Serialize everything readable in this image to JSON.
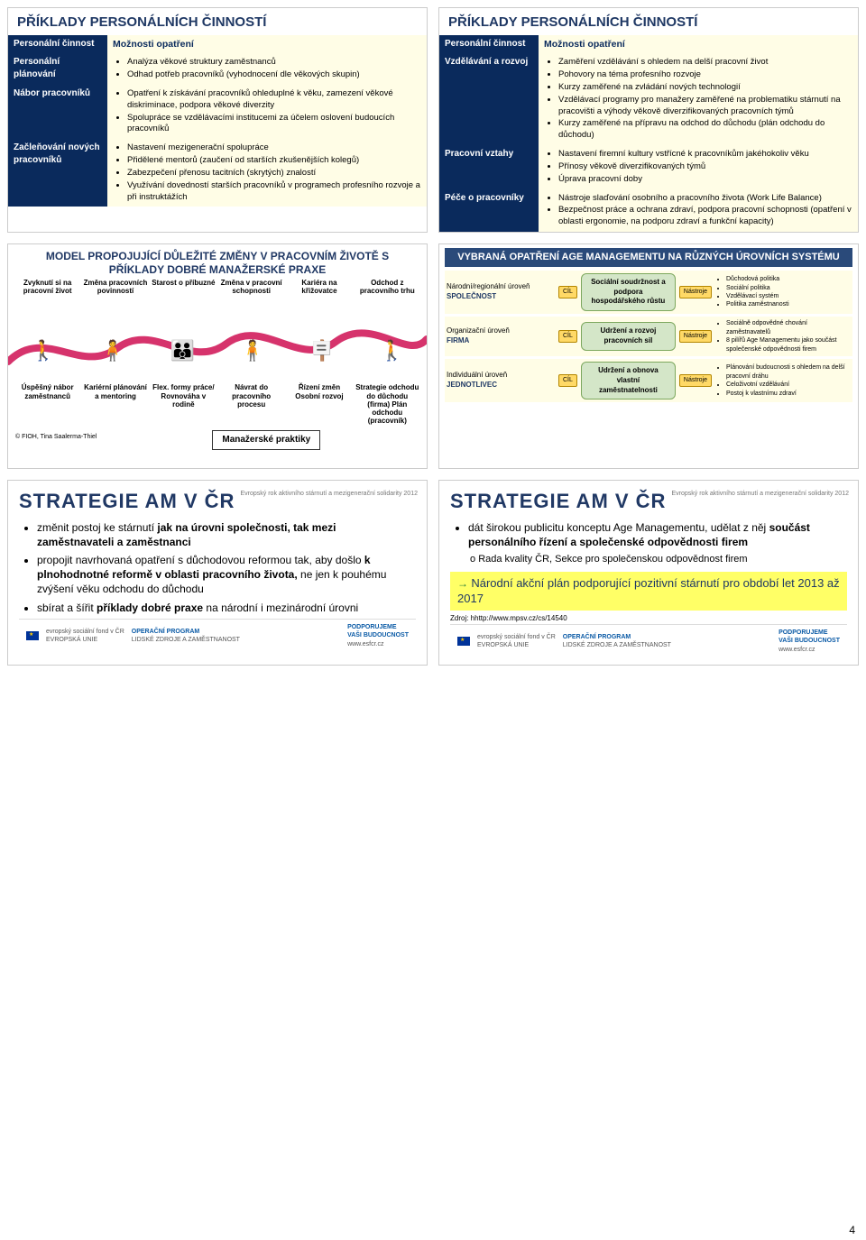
{
  "page_number": "4",
  "panels": {
    "p1": {
      "title": "PŘÍKLADY PERSONÁLNÍCH ČINNOSTÍ",
      "col_label": "Personální činnost",
      "col_opts": "Možnosti opatření",
      "rows": [
        {
          "label": "Personální plánování",
          "items": [
            "Analýza věkové struktury zaměstnanců",
            "Odhad potřeb pracovníků (vyhodnocení dle věkových skupin)"
          ]
        },
        {
          "label": "Nábor pracovníků",
          "items": [
            "Opatření k získávání pracovníků ohleduplné k věku, zamezení věkové diskriminace, podpora věkové diverzity",
            "Spolupráce se vzdělávacími institucemi za účelem oslovení budoucích pracovníků"
          ]
        },
        {
          "label": "Začleňování nových pracovníků",
          "items": [
            "Nastavení mezigenerační spolupráce",
            "Přidělené mentorů (zaučení od starších zkušenějších kolegů)",
            "Zabezpečení přenosu tacitních (skrytých) znalostí",
            "Využívání dovedností starších pracovníků v programech profesního rozvoje a při instruktážích"
          ]
        }
      ]
    },
    "p2": {
      "title": "PŘÍKLADY PERSONÁLNÍCH ČINNOSTÍ",
      "col_label": "Personální činnost",
      "col_opts": "Možnosti opatření",
      "rows": [
        {
          "label": "Vzdělávání a rozvoj",
          "items": [
            "Zaměření vzdělávání s ohledem na delší pracovní život",
            "Pohovory na téma profesního rozvoje",
            "Kurzy zaměřené na zvládání nových technologií",
            "Vzdělávací programy pro manažery zaměřené na problematiku stárnutí na pracovišti a výhody věkově diverzifikovaných pracovních týmů",
            "Kurzy zaměřené na přípravu na odchod do důchodu (plán odchodu do důchodu)"
          ]
        },
        {
          "label": "Pracovní vztahy",
          "items": [
            "Nastavení firemní kultury vstřícné k pracovníkům jakéhokoliv věku",
            "Přínosy věkově diverzifikovaných týmů",
            "Úprava pracovní doby"
          ]
        },
        {
          "label": "Péče o pracovníky",
          "items": [
            "Nástroje slaďování osobního a pracovního života (Work Life Balance)",
            "Bezpečnost práce a ochrana zdraví, podpora pracovní schopnosti (opatření v oblasti ergonomie, na podporu zdraví a funkční kapacity)"
          ]
        }
      ]
    },
    "p3": {
      "title": "MODEL PROPOJUJÍCÍ DŮLEŽITÉ ZMĚNY V PRACOVNÍM ŽIVOTĚ S PŘÍKLADY DOBRÉ MANAŽERSKÉ PRAXE",
      "top": [
        "Zvyknutí si na pracovní život",
        "Změna pracovních povinností",
        "Starost o příbuzné",
        "Změna v pracovní schopnosti",
        "Kariéra na křižovatce",
        "Odchod z pracovního trhu"
      ],
      "bot": [
        "Úspěšný nábor zaměstnanců",
        "Kariérní plánování a mentoring",
        "Flex. formy práce/ Rovnováha v rodině",
        "Návrat do pracovního procesu",
        "Řízení změn Osobní rozvoj",
        "Strategie odchodu do důchodu (firma) Plán odchodu (pracovník)"
      ],
      "mgr": "Manažerské praktiky",
      "credit": "© FIOH, Tina Saalerma-Thiel",
      "wave_color": "#d6336c"
    },
    "p4": {
      "title": "VYBRANÁ OPATŘENÍ AGE MANAGEMENTU NA RŮZNÝCH ÚROVNÍCH SYSTÉMU",
      "cil": "CÍL",
      "nas": "Nástroje",
      "rows": [
        {
          "left_top": "Národní/regionální úroveň",
          "left_main": "SPOLEČNOST",
          "mid": "Sociální soudržnost a podpora hospodářského růstu",
          "right": [
            "Důchodová politika",
            "Sociální politika",
            "Vzdělávací systém",
            "Politika zaměstnanosti"
          ]
        },
        {
          "left_top": "Organizační úroveň",
          "left_main": "FIRMA",
          "mid": "Udržení a rozvoj pracovních sil",
          "right": [
            "Sociálně odpovědné chování zaměstnavatelů",
            "8 pilířů Age Managementu jako součást společenské odpovědnosti firem"
          ]
        },
        {
          "left_top": "Individuální úroveň",
          "left_main": "JEDNOTLIVEC",
          "mid": "Udržení a obnova vlastní zaměstnatelnosti",
          "right": [
            "Plánování budoucnosti s ohledem na delší pracovní dráhu",
            "Celoživotní vzdělávání",
            "Postoj k vlastnímu zdraví"
          ]
        }
      ]
    },
    "p5": {
      "title": "STRATEGIE AM V ČR",
      "items": [
        {
          "pre": "změnit postoj ke stárnutí ",
          "b": "jak na úrovni společnosti, tak mezi zaměstnavateli a zaměstnanci",
          "post": ""
        },
        {
          "pre": "propojit navrhovaná opatření s důchodovou reformou tak, aby došlo ",
          "b": "k plnohodnotné reformě v oblasti pracovního života, ",
          "post": "ne jen k pouhému zvýšení věku odchodu do důchodu"
        },
        {
          "pre": "sbírat a šířit ",
          "b": "příklady dobré praxe ",
          "post": "na národní i mezinárodní úrovni"
        }
      ],
      "badge": "Evropský rok aktivního stárnutí a mezigenerační solidarity 2012"
    },
    "p6": {
      "title": "STRATEGIE AM V ČR",
      "items": [
        {
          "pre": "dát širokou publicitu konceptu Age Managementu, udělat z něj ",
          "b": "součást personálního řízení a společenské odpovědnosti firem",
          "post": ""
        }
      ],
      "sub": "Rada kvality ČR, Sekce pro společenskou odpovědnost firem",
      "sub_prefix": "o ",
      "hl_arrow": "→ ",
      "hl": "Národní akční plán podporující pozitivní stárnutí pro období let 2013 až 2017",
      "src": "Zdroj: hhttp://www.mpsv.cz/cs/14540",
      "badge": "Evropský rok aktivního stárnutí a mezigenerační solidarity 2012"
    }
  },
  "footer": {
    "op1": "OPERAČNÍ PROGRAM",
    "op2": "LIDSKÉ ZDROJE A ZAMĚSTNANOST",
    "pod1": "PODPORUJEME",
    "pod2": "VAŠI BUDOUCNOST",
    "url": "www.esfcr.cz",
    "esf": "evropský sociální fond v ČR",
    "eu": "EVROPSKÁ UNIE"
  }
}
